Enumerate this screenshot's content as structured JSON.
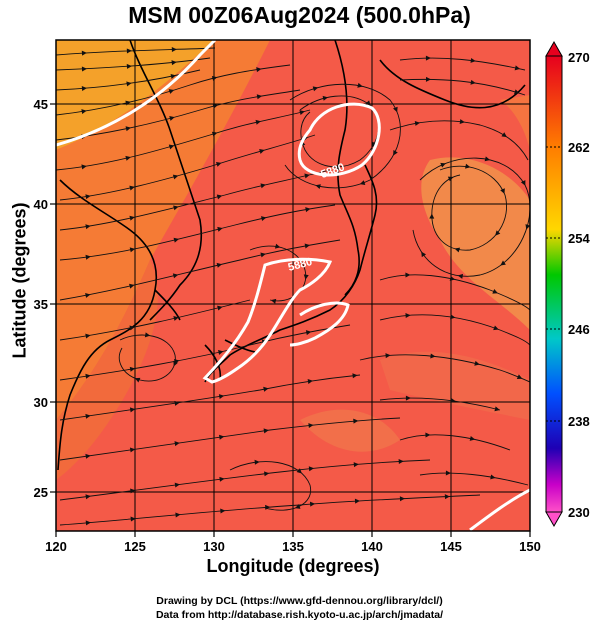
{
  "title": "MSM 00Z06Aug2024 (500.0hPa)",
  "axes": {
    "xlabel": "Longitude (degrees)",
    "ylabel": "Latitude  (degrees)",
    "x_ticks": [
      "120",
      "125",
      "130",
      "135",
      "140",
      "145",
      "150"
    ],
    "y_ticks": [
      "25",
      "30",
      "35",
      "40",
      "45"
    ]
  },
  "colorbar": {
    "labels": [
      "270",
      "262",
      "254",
      "246",
      "238",
      "230"
    ],
    "colors": [
      "#e6001e",
      "#ff7d00",
      "#ffd700",
      "#00c800",
      "#00c8c8",
      "#0050ff",
      "#1e00b4",
      "#c800c8",
      "#ff50c8"
    ]
  },
  "contours": {
    "labels": [
      "5880",
      "5880"
    ],
    "color": "#ffffff"
  },
  "credits": {
    "line1": "Drawing by DCL (https://www.gfd-dennou.org/library/dcl/)",
    "line2": "Data from http://database.rish.kyoto-u.ac.jp/arch/jmadata/"
  },
  "colors": {
    "field_main": "#f45a48",
    "field_warm": "#f57b35",
    "field_cool": "#f2894a",
    "field_orange": "#f4a12a",
    "streamline": "#111111"
  }
}
